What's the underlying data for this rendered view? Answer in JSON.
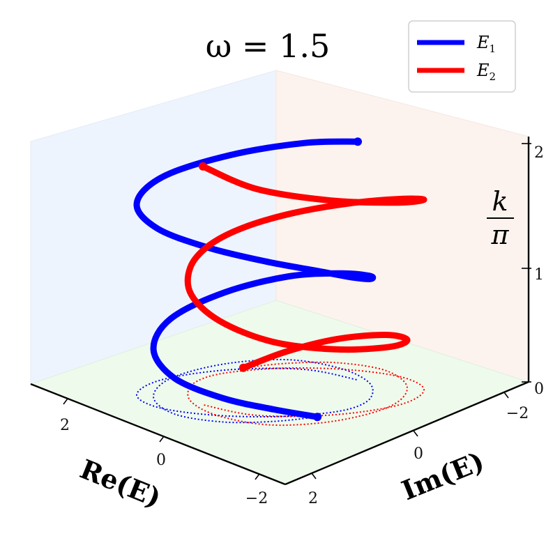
{
  "chart_data": {
    "type": "line3d",
    "title": "ω = 1.5",
    "xlabel": "Re(E)",
    "ylabel": "Im(E)",
    "zlabel_num": "k",
    "zlabel_den": "π",
    "x_ticks": [
      "2",
      "0",
      "−2"
    ],
    "y_ticks": [
      "−2",
      "0",
      "2"
    ],
    "z_ticks": [
      "0",
      "1",
      "2"
    ],
    "legend_placement": "top-right",
    "grid": false,
    "colors": {
      "E1": "#0000ff",
      "E2": "#ff0000"
    },
    "series": [
      {
        "name": "E",
        "sub": "1",
        "color": "#0000ff",
        "points": [
          [
            -1.19,
            0.33,
            0.0
          ],
          [
            -0.86,
            1.05,
            0.1
          ],
          [
            -0.32,
            1.74,
            0.2
          ],
          [
            0.46,
            2.11,
            0.3
          ],
          [
            1.23,
            1.83,
            0.4
          ],
          [
            1.65,
            0.97,
            0.5
          ],
          [
            1.52,
            -0.22,
            0.6
          ],
          [
            0.95,
            -1.2,
            0.7
          ],
          [
            0.09,
            -1.59,
            0.8
          ],
          [
            -0.68,
            -1.48,
            0.9
          ],
          [
            -1.17,
            -0.99,
            1.0
          ],
          [
            -1.29,
            -0.4,
            1.1
          ],
          [
            -1.1,
            0.23,
            1.2
          ],
          [
            -0.64,
            0.98,
            1.3
          ],
          [
            0.06,
            1.68,
            1.4
          ],
          [
            0.87,
            2.11,
            1.5
          ],
          [
            1.51,
            1.95,
            1.6
          ],
          [
            1.7,
            1.12,
            1.7
          ],
          [
            1.28,
            -0.09,
            1.8
          ],
          [
            0.47,
            -1.08,
            1.9
          ],
          [
            -0.45,
            -1.43,
            2.0
          ]
        ]
      },
      {
        "name": "E",
        "sub": "2",
        "color": "#ff0000",
        "points": [
          [
            1.19,
            -0.33,
            0.0
          ],
          [
            0.86,
            -1.05,
            0.1
          ],
          [
            0.32,
            -1.74,
            0.2
          ],
          [
            -0.46,
            -2.11,
            0.3
          ],
          [
            -1.23,
            -1.83,
            0.4
          ],
          [
            -1.65,
            -0.97,
            0.5
          ],
          [
            -1.52,
            0.22,
            0.6
          ],
          [
            -0.95,
            1.2,
            0.7
          ],
          [
            -0.09,
            1.59,
            0.8
          ],
          [
            0.68,
            1.48,
            0.9
          ],
          [
            1.17,
            0.99,
            1.0
          ],
          [
            1.29,
            0.4,
            1.1
          ],
          [
            1.1,
            -0.23,
            1.2
          ],
          [
            0.64,
            -0.98,
            1.3
          ],
          [
            -0.06,
            -1.68,
            1.4
          ],
          [
            -0.87,
            -2.11,
            1.5
          ],
          [
            -1.51,
            -1.95,
            1.6
          ],
          [
            -1.7,
            -1.12,
            1.7
          ],
          [
            -1.28,
            0.09,
            1.8
          ],
          [
            -0.47,
            1.08,
            1.9
          ],
          [
            0.45,
            1.43,
            2.0
          ]
        ]
      }
    ]
  }
}
